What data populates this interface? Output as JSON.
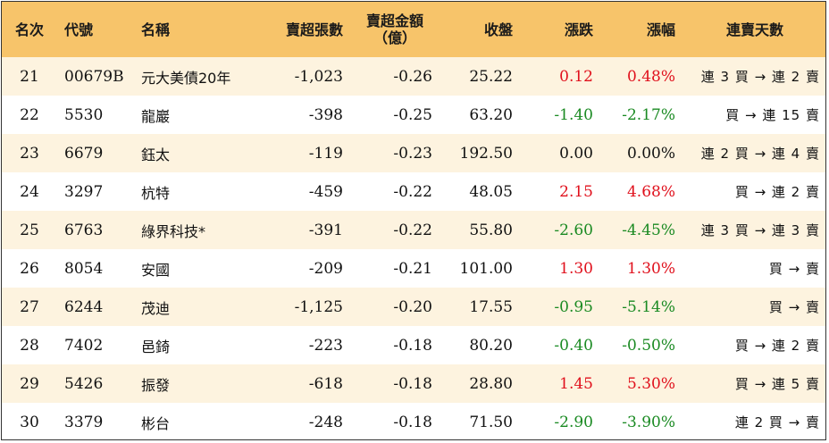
{
  "headers": {
    "rank": "名次",
    "code": "代號",
    "name": "名稱",
    "net_lots": "賣超張數",
    "net_amount": "賣超金額\n（億）",
    "close": "收盤",
    "change": "漲跌",
    "change_pct": "漲幅",
    "streak": "連賣天數"
  },
  "colors": {
    "header_bg": "#f7c46a",
    "row_alt_bg": "#fdf3df",
    "up": "#e0101c",
    "down": "#1a8a22"
  },
  "rows": [
    {
      "rank": "21",
      "code": "00679B",
      "name": "元大美債20年",
      "net_lots": "-1,023",
      "net_amount": "-0.26",
      "close": "25.22",
      "change": "0.12",
      "change_pct": "0.48%",
      "dir": "up",
      "streak": "連 3 買 → 連 2 賣"
    },
    {
      "rank": "22",
      "code": "5530",
      "name": "龍巖",
      "net_lots": "-398",
      "net_amount": "-0.25",
      "close": "63.20",
      "change": "-1.40",
      "change_pct": "-2.17%",
      "dir": "down",
      "streak": "買 → 連 15 賣"
    },
    {
      "rank": "23",
      "code": "6679",
      "name": "鈺太",
      "net_lots": "-119",
      "net_amount": "-0.23",
      "close": "192.50",
      "change": "0.00",
      "change_pct": "0.00%",
      "dir": "flat",
      "streak": "連 2 買 → 連 4 賣"
    },
    {
      "rank": "24",
      "code": "3297",
      "name": "杭特",
      "net_lots": "-459",
      "net_amount": "-0.22",
      "close": "48.05",
      "change": "2.15",
      "change_pct": "4.68%",
      "dir": "up",
      "streak": "買 → 連 2 賣"
    },
    {
      "rank": "25",
      "code": "6763",
      "name": "綠界科技*",
      "net_lots": "-391",
      "net_amount": "-0.22",
      "close": "55.80",
      "change": "-2.60",
      "change_pct": "-4.45%",
      "dir": "down",
      "streak": "連 3 買 → 連 3 賣"
    },
    {
      "rank": "26",
      "code": "8054",
      "name": "安國",
      "net_lots": "-209",
      "net_amount": "-0.21",
      "close": "101.00",
      "change": "1.30",
      "change_pct": "1.30%",
      "dir": "up",
      "streak": "買 → 賣"
    },
    {
      "rank": "27",
      "code": "6244",
      "name": "茂迪",
      "net_lots": "-1,125",
      "net_amount": "-0.20",
      "close": "17.55",
      "change": "-0.95",
      "change_pct": "-5.14%",
      "dir": "down",
      "streak": "買 → 賣"
    },
    {
      "rank": "28",
      "code": "7402",
      "name": "邑錡",
      "net_lots": "-223",
      "net_amount": "-0.18",
      "close": "80.20",
      "change": "-0.40",
      "change_pct": "-0.50%",
      "dir": "down",
      "streak": "買 → 連 2 賣"
    },
    {
      "rank": "29",
      "code": "5426",
      "name": "振發",
      "net_lots": "-618",
      "net_amount": "-0.18",
      "close": "28.80",
      "change": "1.45",
      "change_pct": "5.30%",
      "dir": "up",
      "streak": "買 → 連 5 賣"
    },
    {
      "rank": "30",
      "code": "3379",
      "name": "彬台",
      "net_lots": "-248",
      "net_amount": "-0.18",
      "close": "71.50",
      "change": "-2.90",
      "change_pct": "-3.90%",
      "dir": "down",
      "streak": "連 2 買 → 賣"
    }
  ]
}
